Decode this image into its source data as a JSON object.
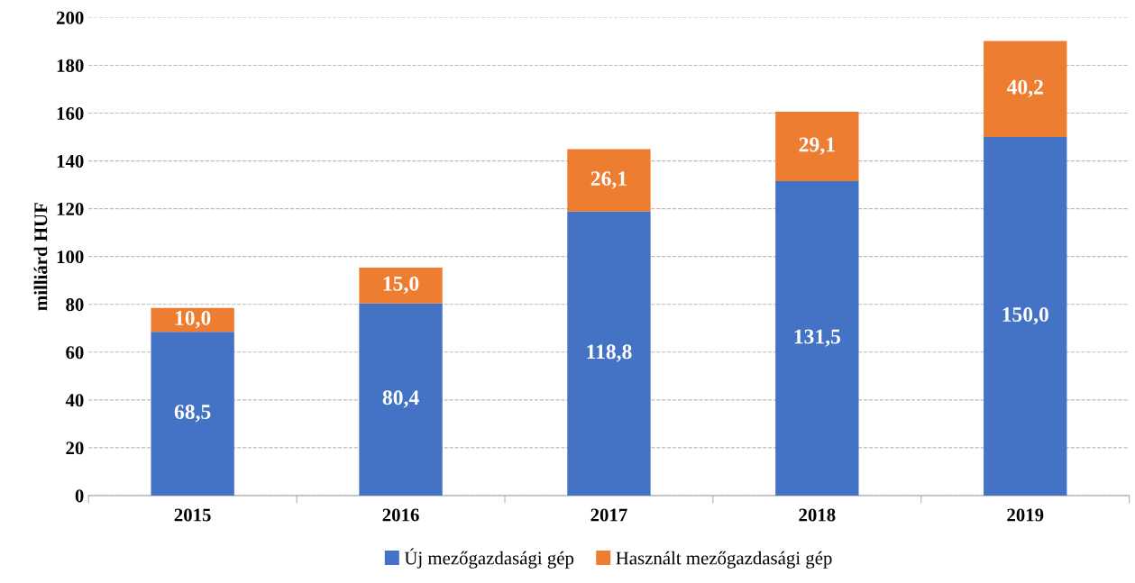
{
  "chart_data": {
    "type": "bar",
    "stacked": true,
    "ylabel": "milliárd HUF",
    "categories": [
      "2015",
      "2016",
      "2017",
      "2018",
      "2019"
    ],
    "series": [
      {
        "name": "Új mezőgazdasági gép",
        "color": "#4472c4",
        "values": [
          68.5,
          80.4,
          118.8,
          131.5,
          150.0
        ],
        "value_labels": [
          "68,5",
          "80,4",
          "118,8",
          "131,5",
          "150,0"
        ]
      },
      {
        "name": "Használt mezőgazdasági gép",
        "color": "#ed7d31",
        "values": [
          10.0,
          15.0,
          26.1,
          29.1,
          40.2
        ],
        "value_labels": [
          "10,0",
          "15,0",
          "26,1",
          "29,1",
          "40,2"
        ]
      }
    ],
    "ylim": [
      0,
      200
    ],
    "yticks": [
      0,
      20,
      40,
      60,
      80,
      100,
      120,
      140,
      160,
      180,
      200
    ],
    "grid": "y",
    "legend": "bottom"
  }
}
